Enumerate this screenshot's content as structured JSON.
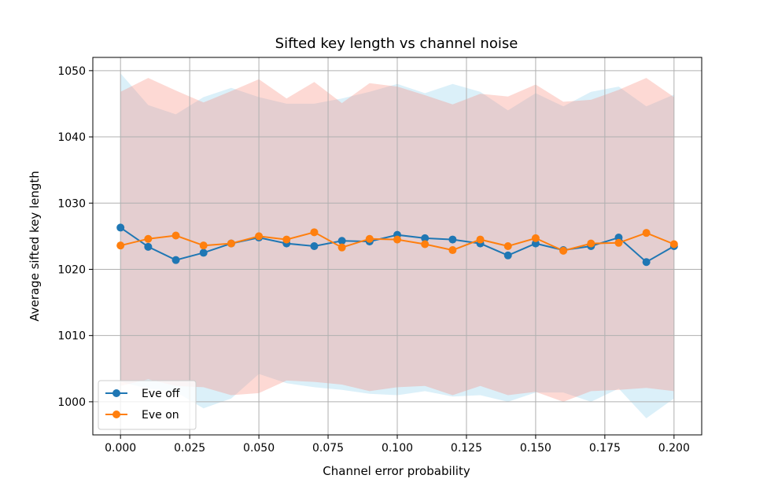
{
  "chart_data": {
    "type": "line",
    "title": "Sifted key length vs channel noise",
    "xlabel": "Channel error probability",
    "ylabel": "Average sifted key length",
    "xlim": [
      -0.01,
      0.21
    ],
    "ylim": [
      995,
      1052
    ],
    "x_ticks": [
      "0.000",
      "0.025",
      "0.050",
      "0.075",
      "0.100",
      "0.125",
      "0.150",
      "0.175",
      "0.200"
    ],
    "y_ticks": [
      "1000",
      "1010",
      "1020",
      "1030",
      "1040",
      "1050"
    ],
    "grid": true,
    "legend_position": "lower-left",
    "x": [
      0.0,
      0.01,
      0.02,
      0.03,
      0.04,
      0.05,
      0.06,
      0.07,
      0.08,
      0.09,
      0.1,
      0.11,
      0.12,
      0.13,
      0.14,
      0.15,
      0.16,
      0.17,
      0.18,
      0.19,
      0.2
    ],
    "series": [
      {
        "name": "Eve off",
        "color": "#1f77b4",
        "band_color": "#87ceeb",
        "values": [
          1026.3,
          1023.4,
          1021.4,
          1022.5,
          1023.9,
          1024.8,
          1023.9,
          1023.5,
          1024.3,
          1024.2,
          1025.2,
          1024.7,
          1024.5,
          1023.9,
          1022.1,
          1023.9,
          1022.9,
          1023.5,
          1024.8,
          1021.1,
          1023.5
        ],
        "upper": [
          1049.6,
          1044.8,
          1043.4,
          1046.0,
          1047.4,
          1046.0,
          1045.0,
          1045.0,
          1045.8,
          1046.8,
          1048.0,
          1046.6,
          1048.0,
          1046.8,
          1044.0,
          1046.6,
          1044.6,
          1046.8,
          1047.6,
          1044.6,
          1046.4
        ],
        "lower": [
          1003.0,
          1002.0,
          1001.5,
          999.0,
          1000.5,
          1004.2,
          1002.8,
          1002.2,
          1001.8,
          1001.2,
          1001.0,
          1001.6,
          1000.8,
          1001.0,
          1000.0,
          1001.4,
          1001.4,
          1000.0,
          1002.0,
          997.5,
          1000.5
        ]
      },
      {
        "name": "Eve on",
        "color": "#ff7f0e",
        "band_color": "#fa8072",
        "values": [
          1023.6,
          1024.6,
          1025.1,
          1023.6,
          1023.9,
          1025.0,
          1024.5,
          1025.6,
          1023.3,
          1024.6,
          1024.5,
          1023.8,
          1022.9,
          1024.5,
          1023.5,
          1024.7,
          1022.8,
          1023.9,
          1024.0,
          1025.5,
          1023.8
        ],
        "upper": [
          1046.8,
          1048.9,
          1047.0,
          1045.2,
          1046.9,
          1048.7,
          1045.8,
          1048.3,
          1045.1,
          1048.1,
          1047.6,
          1046.3,
          1044.9,
          1046.5,
          1046.1,
          1047.9,
          1045.3,
          1045.6,
          1047.1,
          1048.9,
          1046.0
        ],
        "lower": [
          1002.4,
          1003.4,
          1002.4,
          1002.2,
          1001.0,
          1001.3,
          1003.2,
          1003.0,
          1002.6,
          1001.6,
          1002.2,
          1002.4,
          1001.0,
          1002.4,
          1001.0,
          1001.5,
          1000.0,
          1001.6,
          1001.8,
          1002.1,
          1001.6
        ]
      }
    ]
  }
}
